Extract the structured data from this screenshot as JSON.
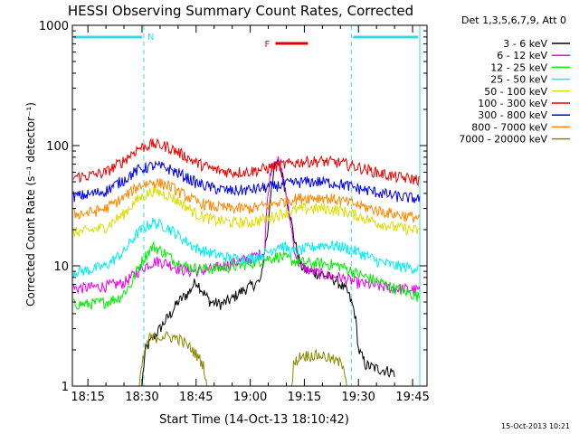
{
  "chart_data": {
    "type": "line",
    "title": "HESSI Observing Summary Count Rates, Corrected",
    "xlabel": "Start Time (14-Oct-13 18:10:42)",
    "ylabel": "Corrected Count Rate (s⁻¹ detector⁻¹)",
    "y_scale": "log",
    "ylim": [
      1,
      1000
    ],
    "xlim": [
      "18:10:42",
      "19:49"
    ],
    "y_ticks": [
      "1",
      "10",
      "100",
      "1000"
    ],
    "x_ticks": [
      "18:15",
      "18:30",
      "18:45",
      "19:00",
      "19:15",
      "19:30",
      "19:45"
    ],
    "legend_header": "Det 1,3,5,6,7,9, Att 0",
    "legend_position": "right",
    "footer_stamp": "15-Oct-2013 10:21",
    "night_label": "N",
    "flare_label": "F",
    "night_intervals": [
      [
        "18:10:42",
        "18:30:30"
      ],
      [
        "19:28",
        "19:47"
      ]
    ],
    "flare_interval": [
      "19:07",
      "19:16"
    ],
    "colors": {
      "night": "#33dddd",
      "flare": "#e00000",
      "axes": "#000000"
    },
    "series": [
      {
        "name": "3 - 6 keV",
        "color": "#000000",
        "points": [
          [
            "18:11",
            0
          ],
          [
            "18:29",
            0
          ],
          [
            "18:31",
            2
          ],
          [
            "18:35",
            3
          ],
          [
            "18:38",
            4
          ],
          [
            "18:40",
            5
          ],
          [
            "18:43",
            6
          ],
          [
            "18:45",
            7.5
          ],
          [
            "18:47",
            6
          ],
          [
            "18:49",
            5
          ],
          [
            "18:52",
            4.8
          ],
          [
            "18:55",
            5.3
          ],
          [
            "18:57",
            6
          ],
          [
            "18:59",
            6.5
          ],
          [
            "19:01",
            7
          ],
          [
            "19:03",
            7.5
          ],
          [
            "19:05",
            20
          ],
          [
            "19:06",
            50
          ],
          [
            "19:07",
            70
          ],
          [
            "19:08",
            72
          ],
          [
            "19:09",
            55
          ],
          [
            "19:10",
            38
          ],
          [
            "19:11",
            26
          ],
          [
            "19:12",
            18
          ],
          [
            "19:13",
            13
          ],
          [
            "19:14",
            10
          ],
          [
            "19:16",
            9
          ],
          [
            "19:20",
            8.5
          ],
          [
            "19:24",
            7.5
          ],
          [
            "19:27",
            6
          ],
          [
            "19:29",
            4
          ],
          [
            "19:30",
            2
          ],
          [
            "19:32",
            1.5
          ],
          [
            "19:35",
            1.4
          ],
          [
            "19:40",
            1.3
          ]
        ]
      },
      {
        "name": "6 - 12 keV",
        "color": "#ee00ee",
        "points": [
          [
            "18:11",
            6.5
          ],
          [
            "18:15",
            6.6
          ],
          [
            "18:20",
            6.8
          ],
          [
            "18:25",
            7.2
          ],
          [
            "18:28",
            8.5
          ],
          [
            "18:31",
            10
          ],
          [
            "18:34",
            11
          ],
          [
            "18:37",
            10.5
          ],
          [
            "18:40",
            9.5
          ],
          [
            "18:43",
            9
          ],
          [
            "18:46",
            9
          ],
          [
            "18:50",
            9.5
          ],
          [
            "18:55",
            10.5
          ],
          [
            "19:00",
            11.5
          ],
          [
            "19:04",
            13
          ],
          [
            "19:05",
            40
          ],
          [
            "19:06",
            70
          ],
          [
            "19:07",
            78
          ],
          [
            "19:08",
            72
          ],
          [
            "19:09",
            55
          ],
          [
            "19:10",
            38
          ],
          [
            "19:11",
            25
          ],
          [
            "19:12",
            15
          ],
          [
            "19:13",
            11
          ],
          [
            "19:15",
            9.5
          ],
          [
            "19:20",
            8.5
          ],
          [
            "19:25",
            8
          ],
          [
            "19:30",
            7.2
          ],
          [
            "19:35",
            6.8
          ],
          [
            "19:40",
            6.5
          ],
          [
            "19:47",
            6.3
          ]
        ]
      },
      {
        "name": "12 - 25 keV",
        "color": "#00ee00",
        "points": [
          [
            "18:11",
            4.8
          ],
          [
            "18:15",
            4.8
          ],
          [
            "18:20",
            5
          ],
          [
            "18:24",
            5.5
          ],
          [
            "18:27",
            7
          ],
          [
            "18:30",
            11
          ],
          [
            "18:33",
            14.5
          ],
          [
            "18:36",
            13
          ],
          [
            "18:39",
            11
          ],
          [
            "18:42",
            10
          ],
          [
            "18:45",
            9.5
          ],
          [
            "18:50",
            9.5
          ],
          [
            "18:55",
            9.8
          ],
          [
            "19:00",
            10.5
          ],
          [
            "19:05",
            11.5
          ],
          [
            "19:08",
            12
          ],
          [
            "19:12",
            11
          ],
          [
            "19:16",
            10.5
          ],
          [
            "19:20",
            10.5
          ],
          [
            "19:25",
            10
          ],
          [
            "19:30",
            8.5
          ],
          [
            "19:35",
            7.5
          ],
          [
            "19:40",
            6.5
          ],
          [
            "19:47",
            5.5
          ]
        ]
      },
      {
        "name": "25 - 50 keV",
        "color": "#00eeee",
        "points": [
          [
            "18:11",
            9
          ],
          [
            "18:15",
            9.2
          ],
          [
            "18:20",
            10
          ],
          [
            "18:25",
            13
          ],
          [
            "18:29",
            19
          ],
          [
            "18:33",
            23
          ],
          [
            "18:37",
            21
          ],
          [
            "18:41",
            17
          ],
          [
            "18:45",
            14
          ],
          [
            "18:50",
            12.5
          ],
          [
            "18:55",
            11.5
          ],
          [
            "19:00",
            11.5
          ],
          [
            "19:05",
            13
          ],
          [
            "19:08",
            15
          ],
          [
            "19:12",
            13
          ],
          [
            "19:16",
            14
          ],
          [
            "19:20",
            15
          ],
          [
            "19:25",
            14.5
          ],
          [
            "19:30",
            13
          ],
          [
            "19:35",
            11
          ],
          [
            "19:40",
            10
          ],
          [
            "19:47",
            9.5
          ]
        ]
      },
      {
        "name": "50 - 100 keV",
        "color": "#dddd00",
        "points": [
          [
            "18:11",
            19
          ],
          [
            "18:15",
            19.5
          ],
          [
            "18:20",
            21
          ],
          [
            "18:25",
            27
          ],
          [
            "18:29",
            36
          ],
          [
            "18:33",
            42
          ],
          [
            "18:37",
            39
          ],
          [
            "18:41",
            33
          ],
          [
            "18:45",
            27
          ],
          [
            "18:50",
            24
          ],
          [
            "18:55",
            23
          ],
          [
            "19:00",
            23
          ],
          [
            "19:05",
            25
          ],
          [
            "19:10",
            28
          ],
          [
            "19:15",
            30
          ],
          [
            "19:20",
            30
          ],
          [
            "19:25",
            29
          ],
          [
            "19:30",
            26
          ],
          [
            "19:35",
            23
          ],
          [
            "19:40",
            21
          ],
          [
            "19:47",
            19.5
          ]
        ]
      },
      {
        "name": "100 - 300 keV",
        "color": "#ee0000",
        "points": [
          [
            "18:11",
            55
          ],
          [
            "18:15",
            56
          ],
          [
            "18:20",
            60
          ],
          [
            "18:25",
            75
          ],
          [
            "18:29",
            95
          ],
          [
            "18:33",
            103
          ],
          [
            "18:37",
            98
          ],
          [
            "18:41",
            85
          ],
          [
            "18:45",
            72
          ],
          [
            "18:50",
            63
          ],
          [
            "18:55",
            60
          ],
          [
            "19:00",
            61
          ],
          [
            "19:05",
            65
          ],
          [
            "19:10",
            70
          ],
          [
            "19:15",
            74
          ],
          [
            "19:20",
            74
          ],
          [
            "19:25",
            72
          ],
          [
            "19:30",
            66
          ],
          [
            "19:35",
            60
          ],
          [
            "19:40",
            55
          ],
          [
            "19:47",
            52
          ]
        ]
      },
      {
        "name": "300 - 800 keV",
        "color": "#0000ee",
        "points": [
          [
            "18:11",
            38
          ],
          [
            "18:15",
            39
          ],
          [
            "18:20",
            42
          ],
          [
            "18:25",
            52
          ],
          [
            "18:29",
            63
          ],
          [
            "18:33",
            68
          ],
          [
            "18:37",
            65
          ],
          [
            "18:41",
            57
          ],
          [
            "18:45",
            49
          ],
          [
            "18:50",
            44
          ],
          [
            "18:55",
            42
          ],
          [
            "19:00",
            43
          ],
          [
            "19:05",
            45
          ],
          [
            "19:10",
            48
          ],
          [
            "19:15",
            50
          ],
          [
            "19:20",
            50
          ],
          [
            "19:25",
            48
          ],
          [
            "19:30",
            44
          ],
          [
            "19:35",
            41
          ],
          [
            "19:40",
            38
          ],
          [
            "19:47",
            36
          ]
        ]
      },
      {
        "name": "800 - 7000 keV",
        "color": "#ff8800",
        "points": [
          [
            "18:11",
            27
          ],
          [
            "18:15",
            27.5
          ],
          [
            "18:20",
            30
          ],
          [
            "18:25",
            37
          ],
          [
            "18:29",
            46
          ],
          [
            "18:33",
            50
          ],
          [
            "18:37",
            47
          ],
          [
            "18:41",
            40
          ],
          [
            "18:45",
            34
          ],
          [
            "18:50",
            31
          ],
          [
            "18:55",
            30
          ],
          [
            "19:00",
            30
          ],
          [
            "19:05",
            32
          ],
          [
            "19:10",
            35
          ],
          [
            "19:15",
            37
          ],
          [
            "19:20",
            37
          ],
          [
            "19:25",
            35
          ],
          [
            "19:30",
            32
          ],
          [
            "19:35",
            29
          ],
          [
            "19:40",
            27
          ],
          [
            "19:47",
            25
          ]
        ]
      },
      {
        "name": "7000 - 20000 keV",
        "color": "#888800",
        "points": [
          [
            "18:11",
            0
          ],
          [
            "18:28",
            0
          ],
          [
            "18:30",
            1.5
          ],
          [
            "18:32",
            2.5
          ],
          [
            "18:36",
            2.6
          ],
          [
            "18:40",
            2.5
          ],
          [
            "18:44",
            2
          ],
          [
            "18:47",
            1.5
          ],
          [
            "18:50",
            0
          ],
          [
            "19:11",
            0
          ],
          [
            "19:12",
            1.5
          ],
          [
            "19:14",
            1.8
          ],
          [
            "19:20",
            1.8
          ],
          [
            "19:26",
            1.5
          ],
          [
            "19:28",
            0
          ],
          [
            "19:47",
            0
          ]
        ]
      }
    ]
  }
}
